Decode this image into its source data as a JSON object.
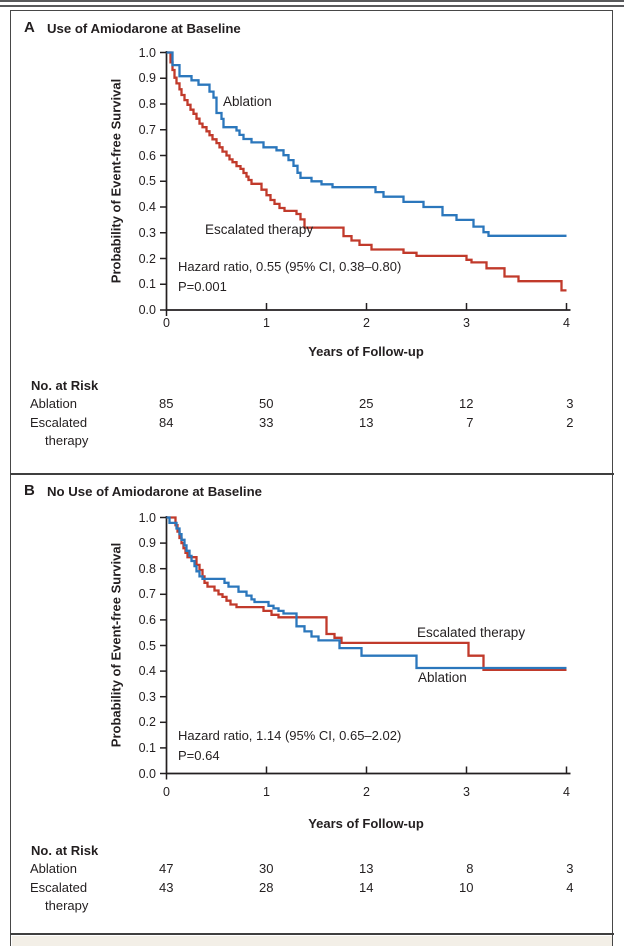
{
  "colors": {
    "ablation": "#2B77BC",
    "escalated": "#C13A2B",
    "axis_ink": "#231f20",
    "caption_strip": "#f3efe7"
  },
  "chart_data": [
    {
      "type": "line",
      "subtype": "kaplan-meier-step",
      "panel_label": "A",
      "title": "Use of Amiodarone at Baseline",
      "xlabel": "Years of Follow-up",
      "ylabel": "Probability of Event-free Survival",
      "xlim": [
        0,
        4
      ],
      "ylim": [
        0.0,
        1.0
      ],
      "x_ticks": [
        "0",
        "1",
        "2",
        "3",
        "4"
      ],
      "y_ticks": [
        "0.0",
        "0.1",
        "0.2",
        "0.3",
        "0.4",
        "0.5",
        "0.6",
        "0.7",
        "0.8",
        "0.9",
        "1.0"
      ],
      "grid": false,
      "annotation_line1": "Hazard ratio, 0.55 (95% CI, 0.38–0.80)",
      "annotation_line2": "P=0.001",
      "series": [
        {
          "name": "Ablation",
          "color": "#2B77BC",
          "steps": [
            [
              0,
              1.0
            ],
            [
              0.06,
              0.951
            ],
            [
              0.13,
              0.908
            ],
            [
              0.25,
              0.892
            ],
            [
              0.32,
              0.875
            ],
            [
              0.43,
              0.848
            ],
            [
              0.47,
              0.825
            ],
            [
              0.5,
              0.765
            ],
            [
              0.55,
              0.742
            ],
            [
              0.57,
              0.71
            ],
            [
              0.7,
              0.697
            ],
            [
              0.73,
              0.68
            ],
            [
              0.77,
              0.664
            ],
            [
              0.85,
              0.651
            ],
            [
              0.97,
              0.632
            ],
            [
              1.1,
              0.62
            ],
            [
              1.17,
              0.601
            ],
            [
              1.22,
              0.582
            ],
            [
              1.27,
              0.56
            ],
            [
              1.31,
              0.533
            ],
            [
              1.34,
              0.513
            ],
            [
              1.45,
              0.5
            ],
            [
              1.55,
              0.488
            ],
            [
              1.66,
              0.477
            ],
            [
              2.09,
              0.458
            ],
            [
              2.17,
              0.44
            ],
            [
              2.37,
              0.42
            ],
            [
              2.57,
              0.4
            ],
            [
              2.76,
              0.368
            ],
            [
              2.9,
              0.35
            ],
            [
              3.07,
              0.324
            ],
            [
              3.17,
              0.302
            ],
            [
              3.22,
              0.288
            ],
            [
              4,
              0.288
            ]
          ]
        },
        {
          "name": "Escalated therapy",
          "color": "#C13A2B",
          "steps": [
            [
              0,
              1.0
            ],
            [
              0.04,
              0.962
            ],
            [
              0.06,
              0.932
            ],
            [
              0.08,
              0.902
            ],
            [
              0.1,
              0.88
            ],
            [
              0.13,
              0.857
            ],
            [
              0.15,
              0.835
            ],
            [
              0.18,
              0.815
            ],
            [
              0.21,
              0.797
            ],
            [
              0.24,
              0.778
            ],
            [
              0.27,
              0.762
            ],
            [
              0.3,
              0.743
            ],
            [
              0.33,
              0.724
            ],
            [
              0.36,
              0.71
            ],
            [
              0.4,
              0.694
            ],
            [
              0.43,
              0.679
            ],
            [
              0.46,
              0.663
            ],
            [
              0.5,
              0.648
            ],
            [
              0.53,
              0.632
            ],
            [
              0.56,
              0.615
            ],
            [
              0.6,
              0.6
            ],
            [
              0.63,
              0.585
            ],
            [
              0.66,
              0.574
            ],
            [
              0.7,
              0.559
            ],
            [
              0.74,
              0.548
            ],
            [
              0.77,
              0.532
            ],
            [
              0.8,
              0.518
            ],
            [
              0.82,
              0.505
            ],
            [
              0.85,
              0.49
            ],
            [
              0.95,
              0.467
            ],
            [
              1.0,
              0.446
            ],
            [
              1.04,
              0.427
            ],
            [
              1.08,
              0.412
            ],
            [
              1.13,
              0.396
            ],
            [
              1.18,
              0.385
            ],
            [
              1.3,
              0.373
            ],
            [
              1.34,
              0.352
            ],
            [
              1.38,
              0.32
            ],
            [
              1.77,
              0.287
            ],
            [
              1.85,
              0.27
            ],
            [
              1.93,
              0.253
            ],
            [
              2.05,
              0.235
            ],
            [
              2.37,
              0.222
            ],
            [
              2.5,
              0.21
            ],
            [
              3.0,
              0.195
            ],
            [
              3.05,
              0.185
            ],
            [
              3.2,
              0.162
            ],
            [
              3.38,
              0.13
            ],
            [
              3.52,
              0.112
            ],
            [
              3.95,
              0.076
            ],
            [
              4,
              0.076
            ]
          ]
        }
      ],
      "risk_heading": "No. at Risk",
      "risk_rows": [
        {
          "label": "Ablation",
          "label2": "",
          "values": [
            "85",
            "50",
            "25",
            "12",
            "3"
          ]
        },
        {
          "label": "Escalated",
          "label2": "therapy",
          "values": [
            "84",
            "33",
            "13",
            "7",
            "2"
          ]
        }
      ]
    },
    {
      "type": "line",
      "subtype": "kaplan-meier-step",
      "panel_label": "B",
      "title": "No Use of Amiodarone at Baseline",
      "xlabel": "Years of Follow-up",
      "ylabel": "Probability of Event-free Survival",
      "xlim": [
        0,
        4
      ],
      "ylim": [
        0.0,
        1.0
      ],
      "x_ticks": [
        "0",
        "1",
        "2",
        "3",
        "4"
      ],
      "y_ticks": [
        "0.0",
        "0.1",
        "0.2",
        "0.3",
        "0.4",
        "0.5",
        "0.6",
        "0.7",
        "0.8",
        "0.9",
        "1.0"
      ],
      "grid": false,
      "annotation_line1": "Hazard ratio, 1.14 (95% CI, 0.65–2.02)",
      "annotation_line2": "P=0.64",
      "series": [
        {
          "name": "Ablation",
          "color": "#2B77BC",
          "steps": [
            [
              0,
              1.0
            ],
            [
              0.03,
              0.979
            ],
            [
              0.1,
              0.957
            ],
            [
              0.13,
              0.935
            ],
            [
              0.15,
              0.913
            ],
            [
              0.18,
              0.891
            ],
            [
              0.2,
              0.87
            ],
            [
              0.23,
              0.85
            ],
            [
              0.25,
              0.83
            ],
            [
              0.28,
              0.81
            ],
            [
              0.3,
              0.79
            ],
            [
              0.33,
              0.77
            ],
            [
              0.36,
              0.76
            ],
            [
              0.58,
              0.745
            ],
            [
              0.62,
              0.73
            ],
            [
              0.72,
              0.71
            ],
            [
              0.8,
              0.695
            ],
            [
              0.85,
              0.68
            ],
            [
              0.88,
              0.67
            ],
            [
              1.02,
              0.655
            ],
            [
              1.07,
              0.645
            ],
            [
              1.12,
              0.635
            ],
            [
              1.17,
              0.625
            ],
            [
              1.3,
              0.575
            ],
            [
              1.38,
              0.555
            ],
            [
              1.45,
              0.535
            ],
            [
              1.52,
              0.52
            ],
            [
              1.73,
              0.49
            ],
            [
              1.95,
              0.46
            ],
            [
              2.5,
              0.412
            ],
            [
              4,
              0.412
            ]
          ]
        },
        {
          "name": "Escalated therapy",
          "color": "#C13A2B",
          "steps": [
            [
              0,
              1.0
            ],
            [
              0.09,
              0.97
            ],
            [
              0.11,
              0.945
            ],
            [
              0.13,
              0.92
            ],
            [
              0.15,
              0.9
            ],
            [
              0.17,
              0.88
            ],
            [
              0.19,
              0.862
            ],
            [
              0.21,
              0.845
            ],
            [
              0.3,
              0.815
            ],
            [
              0.33,
              0.795
            ],
            [
              0.36,
              0.77
            ],
            [
              0.38,
              0.745
            ],
            [
              0.41,
              0.73
            ],
            [
              0.48,
              0.715
            ],
            [
              0.52,
              0.7
            ],
            [
              0.56,
              0.69
            ],
            [
              0.6,
              0.675
            ],
            [
              0.64,
              0.66
            ],
            [
              0.7,
              0.65
            ],
            [
              0.97,
              0.635
            ],
            [
              1.05,
              0.62
            ],
            [
              1.12,
              0.61
            ],
            [
              1.6,
              0.545
            ],
            [
              1.68,
              0.53
            ],
            [
              1.75,
              0.51
            ],
            [
              3.02,
              0.46
            ],
            [
              3.17,
              0.405
            ],
            [
              4,
              0.405
            ]
          ]
        }
      ],
      "risk_heading": "No. at Risk",
      "risk_rows": [
        {
          "label": "Ablation",
          "label2": "",
          "values": [
            "47",
            "30",
            "13",
            "8",
            "3"
          ]
        },
        {
          "label": "Escalated",
          "label2": "therapy",
          "values": [
            "43",
            "28",
            "14",
            "10",
            "4"
          ]
        }
      ]
    }
  ]
}
